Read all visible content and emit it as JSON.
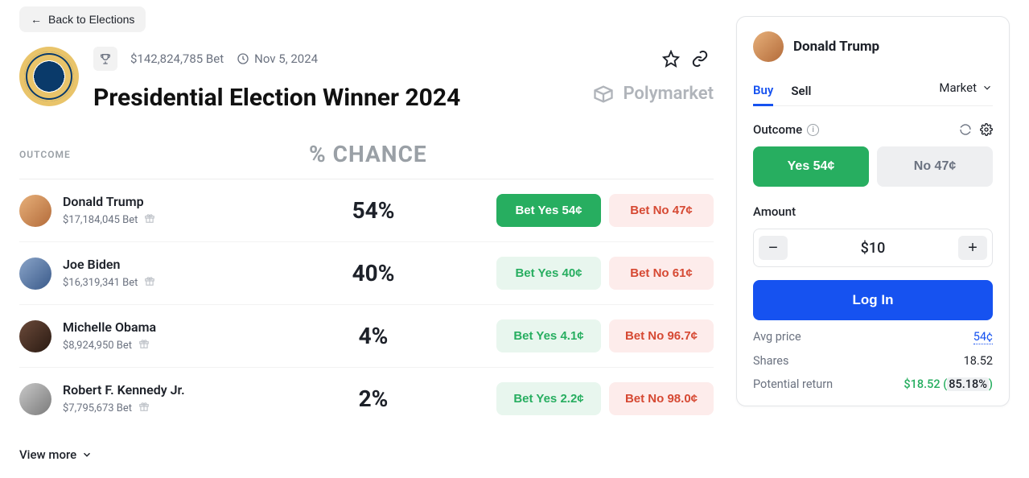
{
  "back_label": "Back to Elections",
  "volume": "$142,824,785 Bet",
  "date": "Nov 5, 2024",
  "title": "Presidential Election Winner 2024",
  "brand": "Polymarket",
  "columns": {
    "c1": "OUTCOME",
    "c2": "% CHANCE"
  },
  "outcomes": [
    {
      "name": "Donald Trump",
      "sub": "$17,184,045 Bet",
      "pct": "54%",
      "yes": "Bet Yes 54¢",
      "no": "Bet No 47¢",
      "yes_strong": true,
      "avatar": "av-a"
    },
    {
      "name": "Joe Biden",
      "sub": "$16,319,341 Bet",
      "pct": "40%",
      "yes": "Bet Yes 40¢",
      "no": "Bet No 61¢",
      "yes_strong": false,
      "avatar": "av-b"
    },
    {
      "name": "Michelle Obama",
      "sub": "$8,924,950 Bet",
      "pct": "4%",
      "yes": "Bet Yes 4.1¢",
      "no": "Bet No 96.7¢",
      "yes_strong": false,
      "avatar": "av-c"
    },
    {
      "name": "Robert F. Kennedy Jr.",
      "sub": "$7,795,673 Bet",
      "pct": "2%",
      "yes": "Bet Yes 2.2¢",
      "no": "Bet No 98.0¢",
      "yes_strong": false,
      "avatar": "av-d"
    }
  ],
  "view_more": "View more",
  "panel": {
    "name": "Donald Trump",
    "tabs": {
      "buy": "Buy",
      "sell": "Sell",
      "type": "Market"
    },
    "outcome_label": "Outcome",
    "yes": "Yes 54¢",
    "no": "No 47¢",
    "amount_label": "Amount",
    "amount_value": "$10",
    "login": "Log In",
    "kv": {
      "avg_price_k": "Avg price",
      "avg_price_v": "54¢",
      "shares_k": "Shares",
      "shares_v": "18.52",
      "return_k": "Potential return",
      "return_v": "$18.52 (",
      "return_pct": "85.18%",
      "return_close": ")"
    }
  },
  "colors": {
    "green": "#27ae60",
    "green_bg": "#e8f6ee",
    "red": "#d64933",
    "red_bg": "#fdeceb",
    "blue": "#1652f0",
    "grey_bg": "#eeeff1",
    "text_muted": "#6b7280"
  }
}
